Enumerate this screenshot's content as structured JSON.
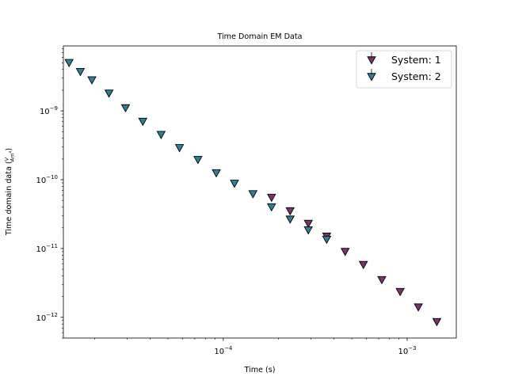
{
  "chart_data": {
    "type": "scatter",
    "title": "Time Domain EM Data",
    "xlabel": "Time (s)",
    "ylabel_prefix": "Time domain data (",
    "ylabel_frac_num": "V",
    "ylabel_frac_den": "Am",
    "ylabel_frac_den_sup": "4",
    "ylabel_suffix": ")",
    "x_scale": "log",
    "y_scale": "log",
    "xlim": [
      1.35e-05,
      0.00185
    ],
    "ylim": [
      5e-13,
      8.8e-09
    ],
    "x_ticks": [
      {
        "value": 0.0001,
        "base": "10",
        "exp": "−4"
      },
      {
        "value": 0.001,
        "base": "10",
        "exp": "−3"
      }
    ],
    "y_ticks": [
      {
        "value": 1e-12,
        "base": "10",
        "exp": "−12"
      },
      {
        "value": 1e-11,
        "base": "10",
        "exp": "−11"
      },
      {
        "value": 1e-10,
        "base": "10",
        "exp": "−10"
      },
      {
        "value": 1e-09,
        "base": "10",
        "exp": "−9"
      }
    ],
    "grid": false,
    "legend_position": "top-right",
    "marker": "triangle-down",
    "series": [
      {
        "name": "System: 1",
        "color": "#80336c",
        "x": [
          0.000183,
          0.000231,
          0.00029,
          0.000365,
          0.00046,
          0.000578,
          0.000728,
          0.000916,
          0.00115,
          0.00145
        ],
        "y": [
          5.5e-11,
          3.5e-11,
          2.3e-11,
          1.5e-11,
          9e-12,
          5.8e-12,
          3.5e-12,
          2.35e-12,
          1.4e-12,
          8.6e-13
        ]
      },
      {
        "name": "System: 2",
        "color": "#2f7f9a",
        "x": [
          1.45e-05,
          1.67e-05,
          1.93e-05,
          2.39e-05,
          2.94e-05,
          3.65e-05,
          4.59e-05,
          5.78e-05,
          7.28e-05,
          9.16e-05,
          0.000115,
          0.000145,
          0.000183,
          0.000231,
          0.00029,
          0.000365
        ],
        "y": [
          5e-09,
          3.7e-09,
          2.8e-09,
          1.8e-09,
          1.1e-09,
          7e-10,
          4.5e-10,
          2.9e-10,
          1.95e-10,
          1.25e-10,
          8.8e-11,
          6.2e-11,
          4e-11,
          2.65e-11,
          1.85e-11,
          1.35e-11
        ]
      }
    ]
  }
}
